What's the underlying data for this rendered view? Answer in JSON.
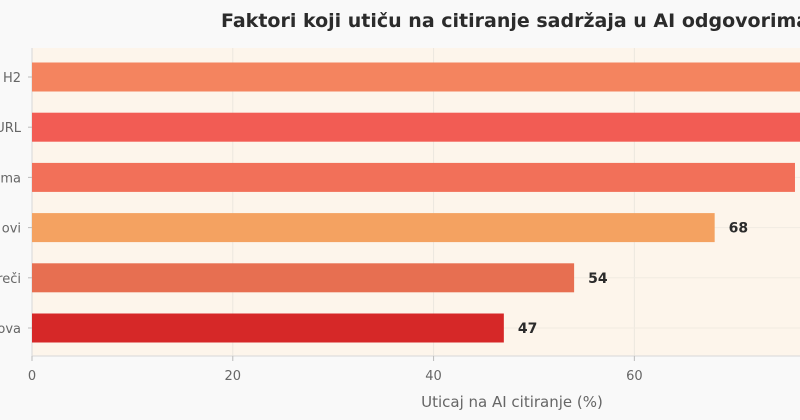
{
  "chart_data": {
    "type": "bar",
    "orientation": "horizontal",
    "title": "Faktori koji utiču na citiranje sadržaja u AI odgovorima",
    "xlabel": "Uticaj na AI citiranje (%)",
    "ylabel": "",
    "xlim": [
      0,
      76.5
    ],
    "xticks": [
      0,
      20,
      40,
      60
    ],
    "categories": [
      "H2",
      "URL",
      "ma",
      "ovi",
      "reči",
      "ova"
    ],
    "values": [
      78,
      77,
      76,
      68,
      54,
      47
    ],
    "value_labels": [
      "",
      "",
      "",
      "68",
      "54",
      "47"
    ],
    "colors": [
      "#f4845f",
      "#f25c54",
      "#f27059",
      "#f4a261",
      "#e76f51",
      "#d62828"
    ],
    "grid": true,
    "legend": "none",
    "plot_background": "#fdf5eb"
  }
}
